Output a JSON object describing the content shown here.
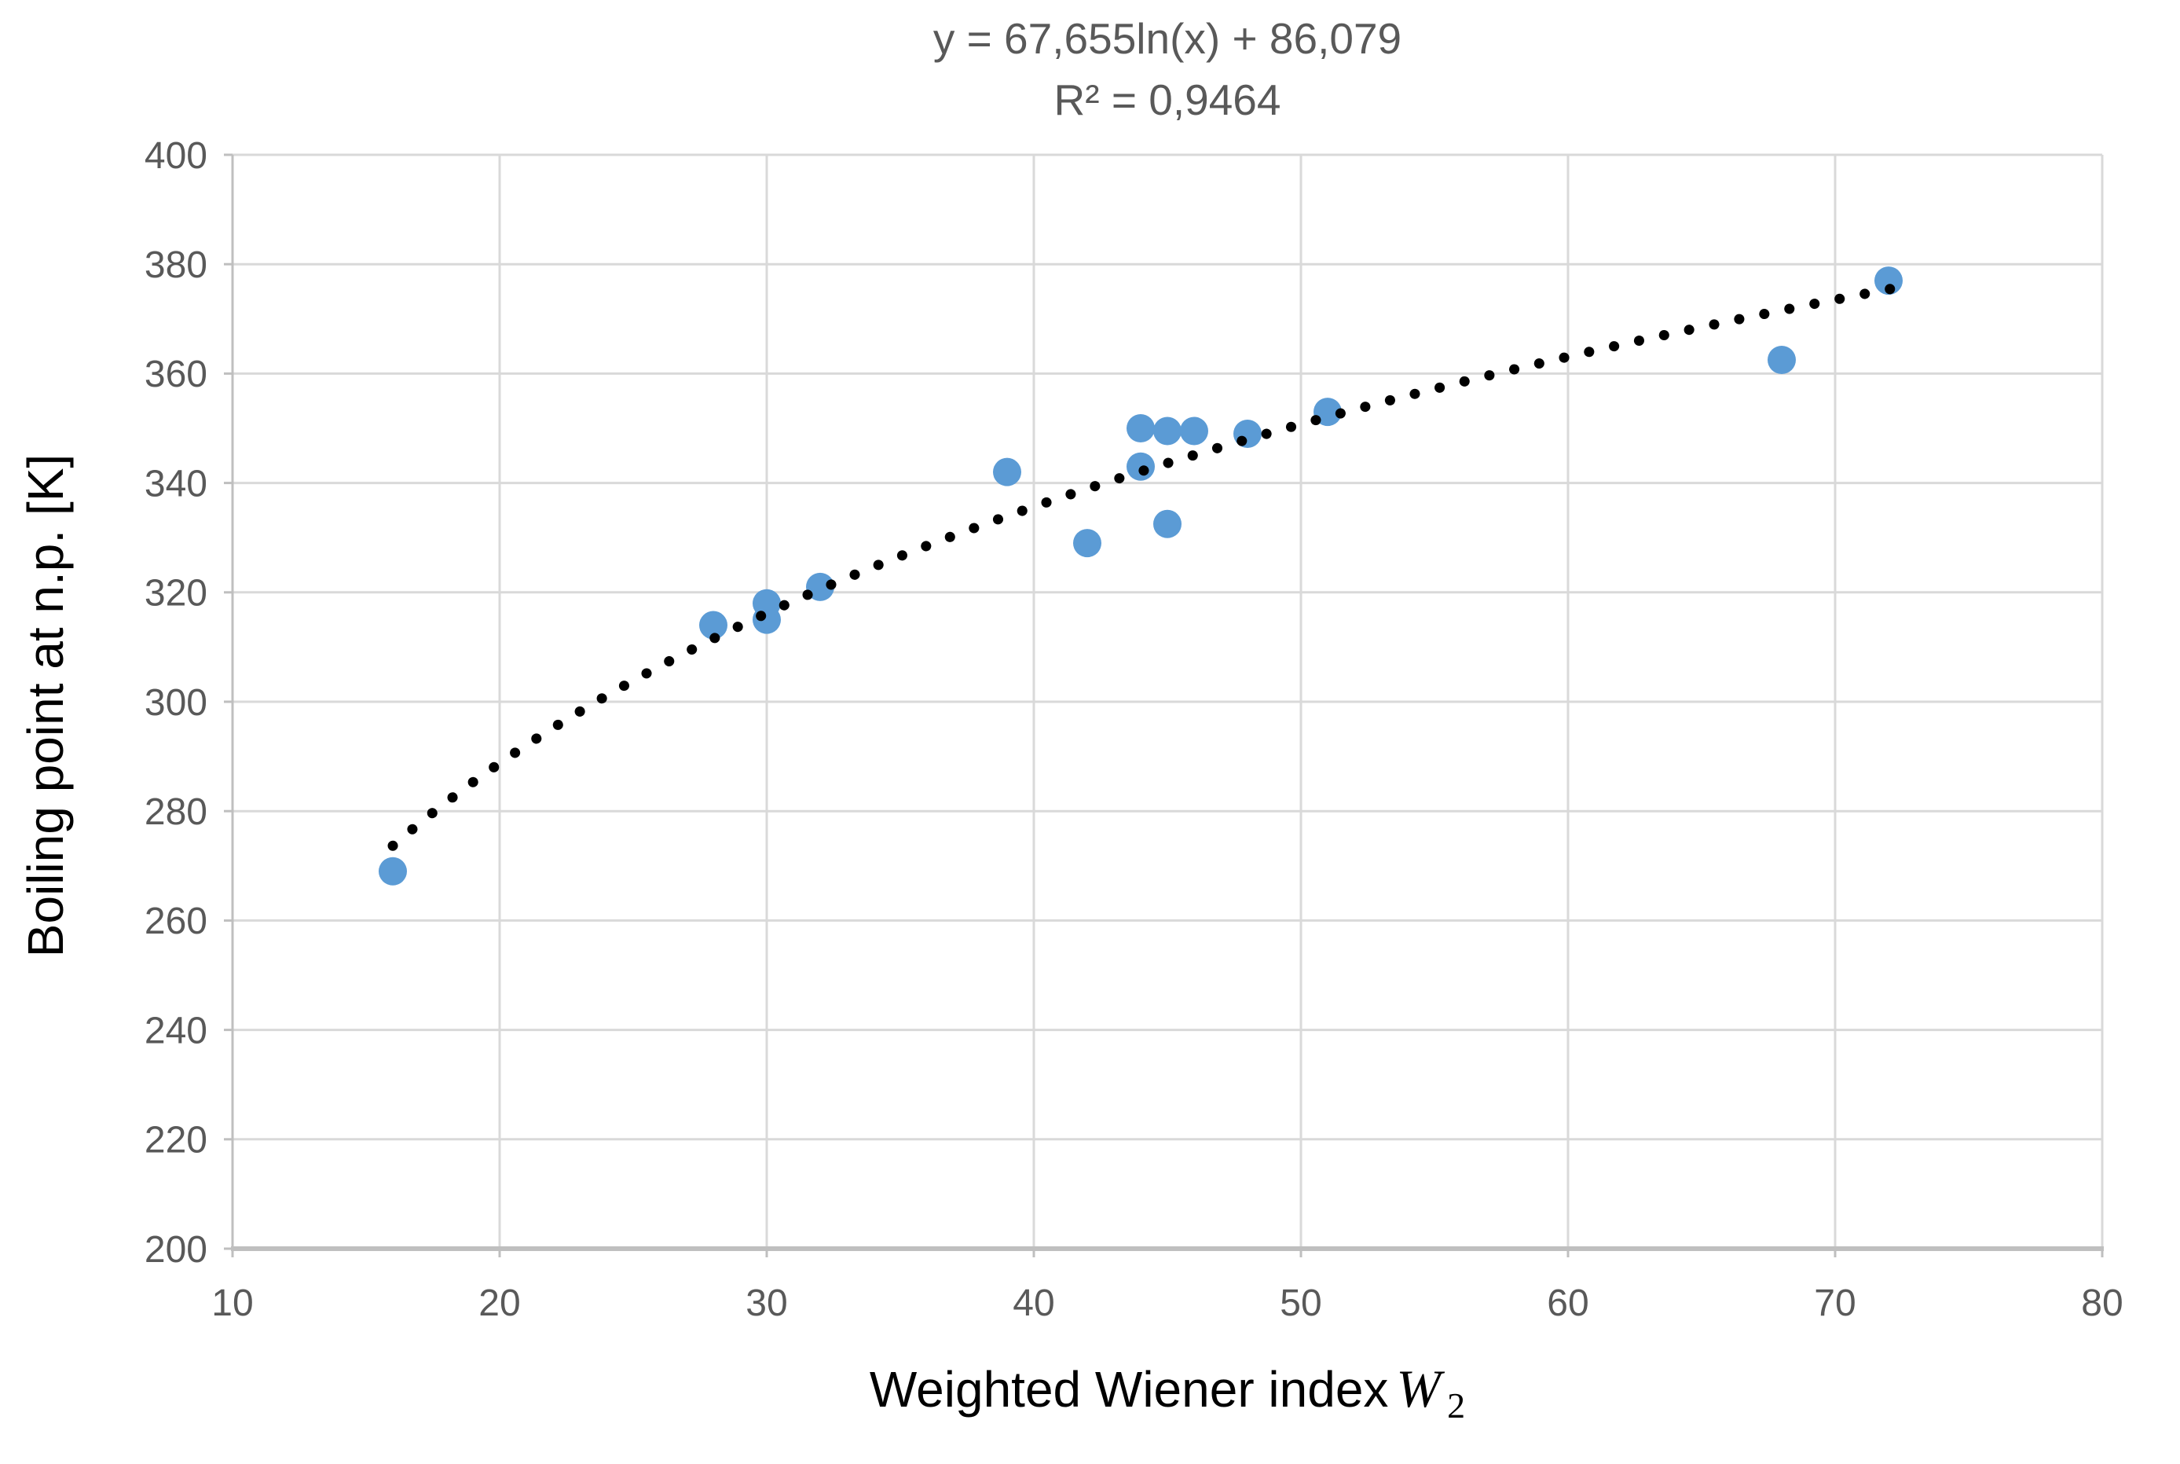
{
  "chart_data": {
    "type": "scatter",
    "title": "",
    "equation_label": "y = 67,655ln(x) + 86,079",
    "r_squared_label": "R² = 0,9464",
    "xlabel": {
      "text": "Weighted Wiener index",
      "symbol": "W",
      "subscript": "2"
    },
    "ylabel": "Boiling point at n.p. [K]",
    "xlim": [
      10,
      80
    ],
    "ylim": [
      200,
      400
    ],
    "x_ticks": [
      10,
      20,
      30,
      40,
      50,
      60,
      70,
      80
    ],
    "y_ticks": [
      200,
      220,
      240,
      260,
      280,
      300,
      320,
      340,
      360,
      380,
      400
    ],
    "grid": true,
    "legend_position": "none",
    "points": [
      {
        "x": 16,
        "y": 269
      },
      {
        "x": 28,
        "y": 314
      },
      {
        "x": 30,
        "y": 315
      },
      {
        "x": 30,
        "y": 318
      },
      {
        "x": 32,
        "y": 321
      },
      {
        "x": 39,
        "y": 342
      },
      {
        "x": 42,
        "y": 329
      },
      {
        "x": 44,
        "y": 343
      },
      {
        "x": 44,
        "y": 350
      },
      {
        "x": 45,
        "y": 332.5
      },
      {
        "x": 45,
        "y": 349.5
      },
      {
        "x": 46,
        "y": 349.5
      },
      {
        "x": 48,
        "y": 349
      },
      {
        "x": 51,
        "y": 353
      },
      {
        "x": 68,
        "y": 362.5
      },
      {
        "x": 72,
        "y": 377
      }
    ],
    "trendline": {
      "kind": "logarithmic",
      "a": 67.655,
      "b": 86.079,
      "x_start": 16,
      "x_end": 72.3,
      "style": "dotted"
    },
    "colors": {
      "marker": "#5B9BD5",
      "trendline": "#000000",
      "gridline": "#D9D9D9",
      "axis_line": "#BFBFBF",
      "tick_label": "#595959",
      "equation_text": "#595959",
      "axis_title": "#000000",
      "background": "#FFFFFF"
    }
  }
}
